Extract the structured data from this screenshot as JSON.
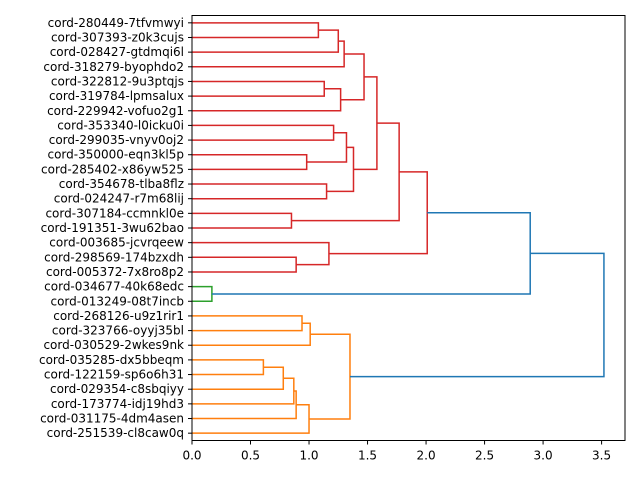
{
  "chart_data": {
    "type": "dendrogram",
    "orientation": "right",
    "title": "",
    "xlabel": "",
    "ylabel": "",
    "xlim": [
      0,
      3.7
    ],
    "xticks": [
      0.0,
      0.5,
      1.0,
      1.5,
      2.0,
      2.5,
      3.0,
      3.5
    ],
    "xtick_labels": [
      "0.0",
      "0.5",
      "1.0",
      "1.5",
      "2.0",
      "2.5",
      "3.0",
      "3.5"
    ],
    "grid": false,
    "leaves": [
      "cord-280449-7tfvmwyi",
      "cord-307393-z0k3cujs",
      "cord-028427-gtdmqi6l",
      "cord-318279-byophdo2",
      "cord-322812-9u3ptqjs",
      "cord-319784-lpmsalux",
      "cord-229942-vofuo2g1",
      "cord-353340-l0icku0i",
      "cord-299035-vnyv0oj2",
      "cord-350000-eqn3kl5p",
      "cord-285402-x86yw525",
      "cord-354678-tlba8flz",
      "cord-024247-r7m68lij",
      "cord-307184-ccmnkl0e",
      "cord-191351-3wu62bao",
      "cord-003685-jcvrqeew",
      "cord-298569-174bzxdh",
      "cord-005372-7x8ro8p2",
      "cord-034677-40k68edc",
      "cord-013249-08t7incb",
      "cord-268126-u9z1rir1",
      "cord-323766-oyyj35bl",
      "cord-030529-2wkes9nk",
      "cord-035285-dx5bbeqm",
      "cord-122159-sp6o6h31",
      "cord-029354-c8sbqiyy",
      "cord-173774-idj19hd3",
      "cord-031175-4dm4asen",
      "cord-251539-cl8caw0q"
    ],
    "colors": {
      "red": "#d62728",
      "green": "#2ca02c",
      "orange": "#ff7f0e",
      "blue": "#1f77b4"
    },
    "merges": [
      {
        "id": "m0",
        "left": "L0",
        "right": "L1",
        "height": 1.08,
        "color": "red"
      },
      {
        "id": "m1",
        "left": "m0",
        "right": "L2",
        "height": 1.25,
        "color": "red"
      },
      {
        "id": "m2",
        "left": "m1",
        "right": "L3",
        "height": 1.3,
        "color": "red"
      },
      {
        "id": "m3",
        "left": "L4",
        "right": "L5",
        "height": 1.13,
        "color": "red"
      },
      {
        "id": "m4",
        "left": "m3",
        "right": "L6",
        "height": 1.27,
        "color": "red"
      },
      {
        "id": "m5",
        "left": "m2",
        "right": "m4",
        "height": 1.47,
        "color": "red"
      },
      {
        "id": "m6",
        "left": "L7",
        "right": "L8",
        "height": 1.21,
        "color": "red"
      },
      {
        "id": "m7",
        "left": "L9",
        "right": "L10",
        "height": 0.98,
        "color": "red"
      },
      {
        "id": "m8",
        "left": "m6",
        "right": "m7",
        "height": 1.32,
        "color": "red"
      },
      {
        "id": "m9",
        "left": "L11",
        "right": "L12",
        "height": 1.15,
        "color": "red"
      },
      {
        "id": "m10",
        "left": "m8",
        "right": "m9",
        "height": 1.38,
        "color": "red"
      },
      {
        "id": "m11",
        "left": "m5",
        "right": "m10",
        "height": 1.58,
        "color": "red"
      },
      {
        "id": "m12",
        "left": "L13",
        "right": "L14",
        "height": 0.85,
        "color": "red"
      },
      {
        "id": "m13",
        "left": "m11",
        "right": "m12",
        "height": 1.77,
        "color": "red"
      },
      {
        "id": "m14",
        "left": "L16",
        "right": "L17",
        "height": 0.89,
        "color": "red"
      },
      {
        "id": "m15",
        "left": "L15",
        "right": "m14",
        "height": 1.17,
        "color": "red"
      },
      {
        "id": "m16",
        "left": "m13",
        "right": "m15",
        "height": 2.01,
        "color": "red"
      },
      {
        "id": "m17",
        "left": "L18",
        "right": "L19",
        "height": 0.17,
        "color": "green"
      },
      {
        "id": "m18",
        "left": "m16",
        "right": "m17",
        "height": 2.89,
        "color": "blue"
      },
      {
        "id": "m19",
        "left": "L20",
        "right": "L21",
        "height": 0.94,
        "color": "orange"
      },
      {
        "id": "m20",
        "left": "m19",
        "right": "L22",
        "height": 1.01,
        "color": "orange"
      },
      {
        "id": "m21",
        "left": "L23",
        "right": "L24",
        "height": 0.61,
        "color": "orange"
      },
      {
        "id": "m22",
        "left": "m21",
        "right": "L25",
        "height": 0.78,
        "color": "orange"
      },
      {
        "id": "m23",
        "left": "m22",
        "right": "L26",
        "height": 0.87,
        "color": "orange"
      },
      {
        "id": "m24",
        "left": "m23",
        "right": "L27",
        "height": 0.89,
        "color": "orange"
      },
      {
        "id": "m25",
        "left": "m24",
        "right": "L28",
        "height": 1.0,
        "color": "orange"
      },
      {
        "id": "m26",
        "left": "m20",
        "right": "m25",
        "height": 1.35,
        "color": "orange"
      },
      {
        "id": "m27",
        "left": "m18",
        "right": "m26",
        "height": 3.52,
        "color": "blue"
      }
    ]
  }
}
